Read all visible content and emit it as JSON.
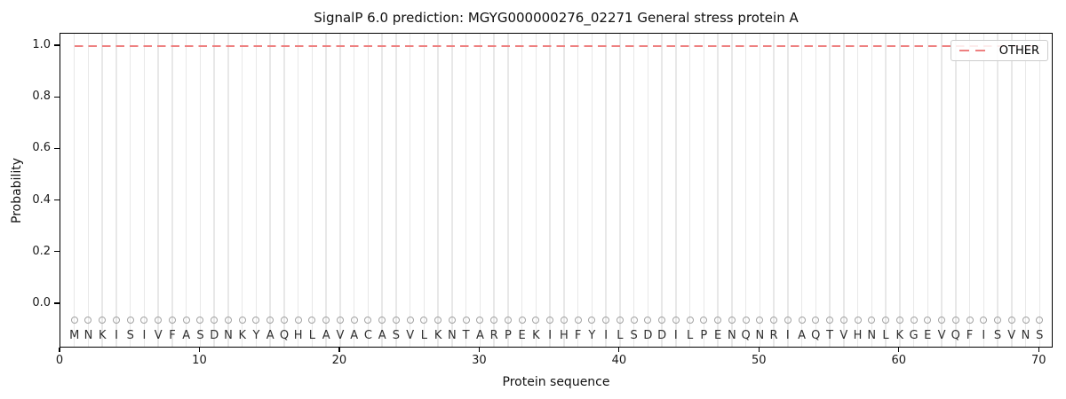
{
  "chart_data": {
    "type": "line",
    "title": "SignalP 6.0 prediction: MGYG000000276_02271 General stress protein A",
    "xlabel": "Protein sequence",
    "ylabel": "Probability",
    "xlim": [
      0,
      71
    ],
    "ylim": [
      -0.17,
      1.05
    ],
    "x_ticks": [
      0,
      10,
      20,
      30,
      40,
      50,
      60,
      70
    ],
    "y_ticks": [
      0,
      0.2,
      0.4,
      0.6,
      0.8,
      1
    ],
    "grid": "vertical gridline at each residue position",
    "legend": {
      "position": "upper right",
      "entries": [
        {
          "label": "OTHER",
          "line_style": "dashed",
          "color": "#ee8080"
        }
      ]
    },
    "sequence": "MNKISIVFASDNKYAQHLAVACASVLKNTARPEKIHFYILSDDILPENQNRIAQTVHNLKGEVQFISVNS",
    "sequence_length": 70,
    "series": [
      {
        "name": "OTHER",
        "style": "dashed",
        "color": "#ee8080",
        "x_range": [
          1,
          70
        ],
        "value": 1.0
      }
    ],
    "marker_row": {
      "marker": "open-circle",
      "y": -0.06,
      "color": "#a3a3a3"
    }
  },
  "colors": {
    "background": "#ffffff",
    "other_line": "#ee8080",
    "gridline": "#e8e8e8",
    "spine": "#000000",
    "residue_marker": "#a3a3a3",
    "text": "#1a1a1a",
    "legend_border": "#cccccc"
  }
}
